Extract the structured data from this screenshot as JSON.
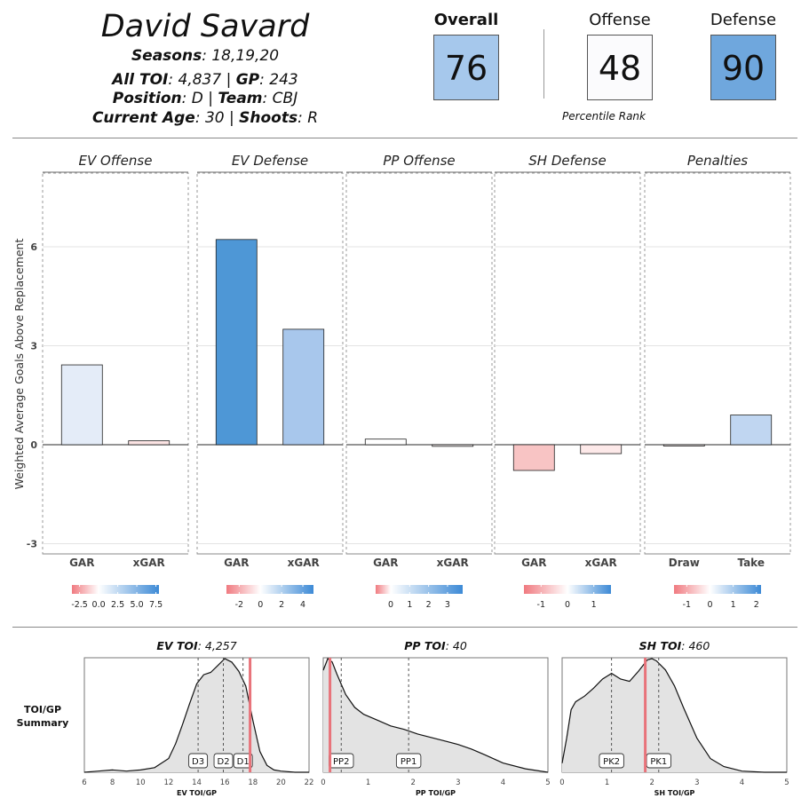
{
  "player": {
    "name": "David Savard",
    "seasons_label": "Seasons",
    "seasons": "18,19,20",
    "toi_label": "All TOI",
    "toi": "4,837",
    "gp_label": "GP",
    "gp": "243",
    "position_label": "Position",
    "position": "D",
    "team_label": "Team",
    "team": "CBJ",
    "age_label": "Current Age",
    "age": "30",
    "shoots_label": "Shoots",
    "shoots": "R"
  },
  "scores": {
    "overall_label": "Overall",
    "overall": "76",
    "overall_color": "#a6c8ec",
    "offense_label": "Offense",
    "offense": "48",
    "offense_color": "#fbfbfd",
    "defense_label": "Defense",
    "defense": "90",
    "defense_color": "#6fa7dd",
    "percentile_label": "Percentile Rank"
  },
  "chart_data": [
    {
      "type": "bar",
      "ylabel": "Weighted Average Goals Above Replacement",
      "ylim": [
        -3.3,
        8.2
      ],
      "yticks": [
        -3,
        0,
        3,
        6
      ],
      "panels": [
        {
          "title": "EV Offense",
          "categories": [
            "GAR",
            "xGAR"
          ],
          "values": [
            2.42,
            0.12
          ],
          "colors": [
            "#e4ecf8",
            "#fbe3e3"
          ],
          "legend": {
            "min": -3.5,
            "max": 7.9,
            "ticks": [
              "-2.5",
              "0.0",
              "2.5",
              "5.0",
              "7.5"
            ],
            "tick_values": [
              -2.5,
              0,
              2.5,
              5,
              7.5
            ]
          }
        },
        {
          "title": "EV Defense",
          "categories": [
            "GAR",
            "xGAR"
          ],
          "values": [
            6.22,
            3.5
          ],
          "colors": [
            "#4e97d6",
            "#a8c7ec"
          ],
          "legend": {
            "min": -3.2,
            "max": 5.0,
            "ticks": [
              "-2",
              "0",
              "2",
              "4"
            ],
            "tick_values": [
              -2,
              0,
              2,
              4
            ]
          }
        },
        {
          "title": "PP Offense",
          "categories": [
            "GAR",
            "xGAR"
          ],
          "values": [
            0.17,
            -0.05
          ],
          "colors": [
            "#ffffff",
            "#f7f0f0"
          ],
          "legend": {
            "min": -0.8,
            "max": 3.8,
            "ticks": [
              "0",
              "1",
              "2",
              "3"
            ],
            "tick_values": [
              0,
              1,
              2,
              3
            ]
          }
        },
        {
          "title": "SH Defense",
          "categories": [
            "GAR",
            "xGAR"
          ],
          "values": [
            -0.78,
            -0.27
          ],
          "colors": [
            "#f8c4c4",
            "#fde9e9"
          ],
          "legend": {
            "min": -1.65,
            "max": 1.65,
            "ticks": [
              "-1",
              "0",
              "1"
            ],
            "tick_values": [
              -1,
              0,
              1
            ]
          }
        },
        {
          "title": "Penalties",
          "categories": [
            "Draw",
            "Take"
          ],
          "values": [
            -0.04,
            0.9
          ],
          "colors": [
            "#f7f0f0",
            "#c0d6f1"
          ],
          "legend": {
            "min": -1.55,
            "max": 2.2,
            "ticks": [
              "-1",
              "0",
              "1",
              "2"
            ],
            "tick_values": [
              -1,
              0,
              1,
              2
            ]
          }
        }
      ]
    },
    {
      "type": "area",
      "summary_label": "TOI/GP Summary",
      "panels": [
        {
          "title": "EV TOI",
          "title_value": "4,257",
          "xlabel": "EV TOI/GP",
          "xlim": [
            6,
            22
          ],
          "xticks": [
            6,
            8,
            10,
            12,
            14,
            16,
            18,
            20,
            22
          ],
          "player_value": 17.8,
          "quantiles": [
            {
              "label": "D3",
              "x": 14.1
            },
            {
              "label": "D2",
              "x": 15.9
            },
            {
              "label": "D1",
              "x": 17.3
            }
          ],
          "density_x": [
            6.0,
            7.0,
            8.0,
            9.0,
            10.0,
            11.0,
            12.0,
            12.5,
            13.0,
            13.5,
            14.0,
            14.5,
            15.0,
            15.5,
            16.0,
            16.5,
            17.0,
            17.5,
            18.0,
            18.5,
            19.0,
            19.5,
            20.0,
            21.0,
            22.0
          ],
          "density_y": [
            0.0,
            0.01,
            0.02,
            0.01,
            0.02,
            0.04,
            0.12,
            0.25,
            0.42,
            0.6,
            0.77,
            0.85,
            0.87,
            0.93,
            0.99,
            0.96,
            0.88,
            0.75,
            0.45,
            0.18,
            0.06,
            0.02,
            0.01,
            0.0,
            0.0
          ]
        },
        {
          "title": "PP TOI",
          "title_value": "40",
          "xlabel": "PP TOI/GP",
          "xlim": [
            0,
            5
          ],
          "xticks": [
            0,
            1,
            2,
            3,
            4,
            5
          ],
          "player_value": 0.15,
          "quantiles": [
            {
              "label": "PP2",
              "x": 0.4
            },
            {
              "label": "PP1",
              "x": 1.9
            }
          ],
          "density_x": [
            0.0,
            0.1,
            0.2,
            0.3,
            0.5,
            0.7,
            0.9,
            1.2,
            1.5,
            1.8,
            2.1,
            2.4,
            2.7,
            3.0,
            3.3,
            3.6,
            4.0,
            4.5,
            5.0
          ],
          "density_y": [
            0.88,
            0.98,
            0.95,
            0.85,
            0.67,
            0.56,
            0.5,
            0.45,
            0.4,
            0.37,
            0.33,
            0.3,
            0.27,
            0.24,
            0.2,
            0.15,
            0.08,
            0.03,
            0.0
          ]
        },
        {
          "title": "SH TOI",
          "title_value": "460",
          "xlabel": "SH TOI/GP",
          "xlim": [
            0,
            5
          ],
          "xticks": [
            0,
            1,
            2,
            3,
            4,
            5
          ],
          "player_value": 1.85,
          "quantiles": [
            {
              "label": "PK2",
              "x": 1.1
            },
            {
              "label": "PK1",
              "x": 2.15
            }
          ],
          "density_x": [
            0.0,
            0.1,
            0.2,
            0.3,
            0.5,
            0.7,
            0.9,
            1.1,
            1.3,
            1.5,
            1.7,
            1.9,
            2.0,
            2.1,
            2.3,
            2.5,
            2.7,
            3.0,
            3.3,
            3.6,
            4.0,
            4.5,
            5.0
          ],
          "density_y": [
            0.08,
            0.3,
            0.55,
            0.62,
            0.67,
            0.74,
            0.82,
            0.87,
            0.82,
            0.8,
            0.89,
            0.99,
            1.0,
            0.98,
            0.9,
            0.76,
            0.57,
            0.3,
            0.12,
            0.05,
            0.01,
            0.0,
            0.0
          ]
        }
      ]
    }
  ]
}
